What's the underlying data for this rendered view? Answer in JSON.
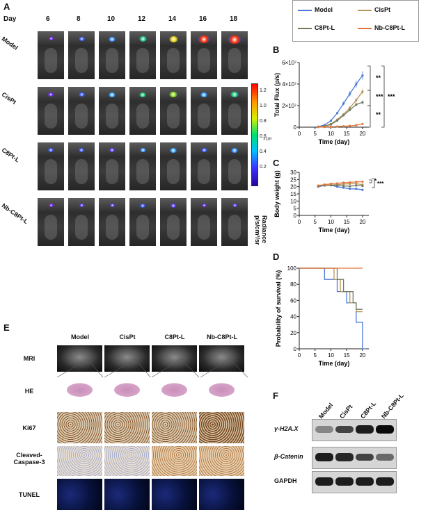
{
  "panelA": {
    "letter": "A",
    "day_label": "Day",
    "days": [
      "6",
      "8",
      "10",
      "12",
      "14",
      "16",
      "18"
    ],
    "groups": [
      "Model",
      "CisPt",
      "C8Pt-L",
      "Nb-C8Pt-L"
    ],
    "colorbar": {
      "ticks": [
        "1.2",
        "1.0",
        "0.8",
        "0.6",
        "0.4",
        "0.2"
      ],
      "exponent": "×10⁸",
      "title": "Radiance",
      "unit": "p/s/cm²/sr"
    }
  },
  "legend": {
    "items": [
      {
        "name": "Model",
        "color": "#4a78d8"
      },
      {
        "name": "CisPt",
        "color": "#b8955a"
      },
      {
        "name": "C8Pt-L",
        "color": "#6e7a62"
      },
      {
        "name": "Nb-C8Pt-L",
        "color": "#e2763a"
      }
    ]
  },
  "panelB": {
    "letter": "B",
    "chart_data": {
      "type": "line",
      "title": "",
      "xlabel": "Time (day)",
      "ylabel": "Total Flux (p/s)",
      "xlim": [
        0,
        22
      ],
      "ylim": [
        0,
        60000000
      ],
      "x_ticks": [
        "0",
        "5",
        "10",
        "15",
        "20"
      ],
      "y_ticks": [
        "0",
        "2×10⁷",
        "4×10⁷",
        "6×10⁷"
      ],
      "series": [
        {
          "name": "Model",
          "x": [
            6,
            8,
            10,
            12,
            14,
            16,
            18,
            20
          ],
          "values": [
            500000,
            2000000,
            6000000,
            13000000,
            22000000,
            31000000,
            40000000,
            48000000
          ]
        },
        {
          "name": "CisPt",
          "x": [
            6,
            8,
            10,
            12,
            14,
            16,
            18,
            20
          ],
          "values": [
            300000,
            1000000,
            3000000,
            7000000,
            12000000,
            18000000,
            25000000,
            33000000
          ]
        },
        {
          "name": "C8Pt-L",
          "x": [
            6,
            8,
            10,
            12,
            14,
            16,
            18,
            20
          ],
          "values": [
            200000,
            800000,
            2500000,
            6000000,
            11000000,
            16000000,
            21000000,
            23000000
          ]
        },
        {
          "name": "Nb-C8Pt-L",
          "x": [
            6,
            8,
            10,
            12,
            14,
            16,
            18,
            20
          ],
          "values": [
            100000,
            200000,
            400000,
            600000,
            900000,
            1200000,
            1800000,
            3000000
          ]
        }
      ],
      "annotations": [
        "**",
        "***",
        "**",
        "***"
      ]
    }
  },
  "panelC": {
    "letter": "C",
    "chart_data": {
      "type": "line",
      "xlabel": "Time (day)",
      "ylabel": "Body weight (g)",
      "xlim": [
        0,
        22
      ],
      "ylim": [
        0,
        30
      ],
      "x_ticks": [
        "0",
        "5",
        "10",
        "15",
        "20"
      ],
      "y_ticks": [
        "0",
        "5",
        "10",
        "15",
        "20",
        "25",
        "30"
      ],
      "series": [
        {
          "name": "Model",
          "x": [
            6,
            8,
            10,
            12,
            14,
            16,
            18,
            20
          ],
          "values": [
            20.0,
            20.8,
            21.0,
            20.0,
            19.3,
            18.5,
            18.5,
            17.8
          ]
        },
        {
          "name": "CisPt",
          "x": [
            6,
            8,
            10,
            12,
            14,
            16,
            18,
            20
          ],
          "values": [
            20.5,
            21.0,
            21.3,
            21.5,
            21.8,
            22.0,
            22.0,
            21.5
          ]
        },
        {
          "name": "C8Pt-L",
          "x": [
            6,
            8,
            10,
            12,
            14,
            16,
            18,
            20
          ],
          "values": [
            20.3,
            20.8,
            21.0,
            20.8,
            20.5,
            20.3,
            20.8,
            20.5
          ]
        },
        {
          "name": "Nb-C8Pt-L",
          "x": [
            6,
            8,
            10,
            12,
            14,
            16,
            18,
            20
          ],
          "values": [
            20.8,
            21.5,
            22.0,
            22.3,
            22.8,
            23.0,
            23.3,
            23.5
          ]
        }
      ],
      "annotations": [
        "*",
        "***"
      ]
    }
  },
  "panelD": {
    "letter": "D",
    "chart_data": {
      "type": "line",
      "xlabel": "Time (day)",
      "ylabel": "Probability of survival (%)",
      "xlim": [
        0,
        22
      ],
      "ylim": [
        0,
        100
      ],
      "x_ticks": [
        "0",
        "5",
        "10",
        "15",
        "20"
      ],
      "y_ticks": [
        "0",
        "20",
        "40",
        "60",
        "80",
        "100"
      ],
      "series": [
        {
          "name": "Model",
          "x": [
            0,
            8,
            8,
            12,
            12,
            15,
            15,
            18,
            18,
            20,
            20,
            21
          ],
          "values": [
            100,
            100,
            86,
            86,
            71,
            71,
            57,
            57,
            33,
            33,
            0,
            0
          ]
        },
        {
          "name": "CisPt",
          "x": [
            0,
            11,
            11,
            13,
            13,
            16,
            16,
            18,
            18,
            20
          ],
          "values": [
            100,
            100,
            86,
            86,
            71,
            71,
            57,
            57,
            46,
            46
          ]
        },
        {
          "name": "C8Pt-L",
          "x": [
            0,
            12,
            12,
            14,
            14,
            17,
            17,
            18,
            18,
            20
          ],
          "values": [
            100,
            100,
            86,
            86,
            71,
            71,
            57,
            57,
            49,
            49
          ]
        },
        {
          "name": "Nb-C8Pt-L",
          "x": [
            0,
            20
          ],
          "values": [
            100,
            100
          ]
        }
      ]
    }
  },
  "panelE": {
    "letter": "E",
    "columns": [
      "Model",
      "CisPt",
      "C8Pt-L",
      "Nb-C8Pt-L"
    ],
    "rows": [
      "MRI",
      "HE",
      "Ki67",
      "Cleaved-Caspase-3",
      "TUNEL"
    ]
  },
  "panelF": {
    "letter": "F",
    "lanes": [
      "Model",
      "CisPt",
      "C8Pt-L",
      "Nb-C8Pt-L"
    ],
    "bands": [
      {
        "label": "γ-H2A.X",
        "intensity": [
          0.35,
          0.7,
          0.9,
          1.0
        ]
      },
      {
        "label": "β-Catenin",
        "intensity": [
          0.9,
          0.85,
          0.7,
          0.5
        ]
      },
      {
        "label": "GAPDH",
        "intensity": [
          0.9,
          0.9,
          0.9,
          0.9
        ]
      }
    ]
  },
  "colors": {
    "axis": "#222222",
    "sig_bracket": "#333333"
  }
}
